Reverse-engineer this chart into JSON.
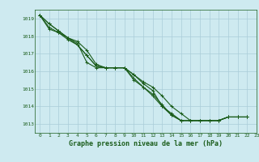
{
  "title": "Graphe pression niveau de la mer (hPa)",
  "xlim": [
    -0.5,
    23
  ],
  "ylim": [
    1012.5,
    1019.5
  ],
  "yticks": [
    1013,
    1014,
    1015,
    1016,
    1017,
    1018,
    1019
  ],
  "xticks": [
    0,
    1,
    2,
    3,
    4,
    5,
    6,
    7,
    8,
    9,
    10,
    11,
    12,
    13,
    14,
    15,
    16,
    17,
    18,
    19,
    20,
    21,
    22,
    23
  ],
  "background_color": "#ceeaf0",
  "grid_color": "#aacdd8",
  "line_color": "#1a5c1a",
  "tick_color": "#1a5c1a",
  "title_color": "#1a5c1a",
  "marker": "+",
  "marker_size": 3,
  "linewidth": 0.8,
  "series": [
    [
      1019.2,
      1018.7,
      1018.3,
      1017.9,
      1017.6,
      1016.5,
      1016.2,
      1016.2,
      1016.2,
      1016.2,
      1015.8,
      1015.4,
      1015.1,
      1014.6,
      1014.0,
      1013.6,
      1013.2,
      1013.2,
      1013.2,
      1013.2,
      1013.4,
      1013.4,
      1013.4
    ],
    [
      1019.2,
      1018.7,
      1018.3,
      1017.9,
      1017.7,
      1017.2,
      1016.4,
      1016.2,
      1016.2,
      1016.2,
      1015.8,
      1015.3,
      1014.9,
      1014.0,
      1013.6,
      1013.2,
      1013.2,
      1013.2,
      1013.2,
      1013.2,
      1013.4,
      1013.4,
      1013.4
    ],
    [
      1019.2,
      1018.5,
      1018.2,
      1017.9,
      1017.5,
      1016.9,
      1016.3,
      1016.2,
      1016.2,
      1016.2,
      1015.6,
      1015.1,
      1014.7,
      1014.1,
      1013.5,
      1013.2,
      1013.2,
      1013.2,
      1013.2,
      1013.2,
      1013.4,
      1013.4,
      1013.4
    ],
    [
      1019.2,
      1018.4,
      1018.2,
      1017.8,
      1017.5,
      1016.9,
      1016.3,
      1016.2,
      1016.2,
      1016.2,
      1015.5,
      1015.1,
      1014.6,
      1014.0,
      1013.5,
      1013.2,
      1013.2,
      1013.2,
      1013.2,
      1013.2,
      1013.4,
      1013.4,
      1013.4
    ]
  ]
}
